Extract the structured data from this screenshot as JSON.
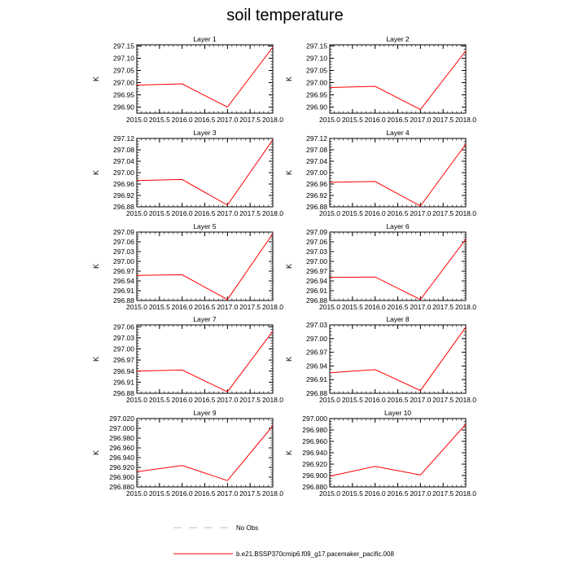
{
  "title": "soil temperature",
  "legend": {
    "items": [
      {
        "label": "No Obs",
        "style": "dashed",
        "color": "#d4b3d4"
      },
      {
        "label": "b.e21.BSSP370cmip6.f09_g17.pacemaker_pacific.008",
        "style": "solid",
        "color": "#ff0000"
      }
    ]
  },
  "colors": {
    "series": "#ff0000",
    "axis": "#000000"
  },
  "chart_data": [
    {
      "type": "line",
      "title": "Layer 1",
      "ylabel": "K",
      "x": [
        2015.0,
        2016.0,
        2017.0,
        2018.0
      ],
      "values": [
        296.99,
        296.995,
        296.9,
        297.145
      ],
      "ylim": [
        296.875,
        297.155
      ],
      "yticks": [
        "297.15",
        "297.10",
        "297.05",
        "297.00",
        "296.95",
        "296.90"
      ],
      "ytick_values": [
        297.15,
        297.1,
        297.05,
        297.0,
        296.95,
        296.9
      ],
      "xticks": [
        "2015.0",
        "2015.5",
        "2016.0",
        "2016.5",
        "2017.0",
        "2017.5",
        "2018.0"
      ],
      "xlim": [
        2015.0,
        2018.0
      ]
    },
    {
      "type": "line",
      "title": "Layer 2",
      "ylabel": "K",
      "x": [
        2015.0,
        2016.0,
        2017.0,
        2018.0
      ],
      "values": [
        296.98,
        296.985,
        296.89,
        297.13
      ],
      "ylim": [
        296.875,
        297.155
      ],
      "yticks": [
        "297.15",
        "297.10",
        "297.05",
        "297.00",
        "296.95",
        "296.90"
      ],
      "ytick_values": [
        297.15,
        297.1,
        297.05,
        297.0,
        296.95,
        296.9
      ],
      "xticks": [
        "2015.0",
        "2015.5",
        "2016.0",
        "2016.5",
        "2017.0",
        "2017.5",
        "2018.0"
      ],
      "xlim": [
        2015.0,
        2018.0
      ]
    },
    {
      "type": "line",
      "title": "Layer 3",
      "ylabel": "K",
      "x": [
        2015.0,
        2016.0,
        2017.0,
        2018.0
      ],
      "values": [
        296.972,
        296.976,
        296.886,
        297.115
      ],
      "ylim": [
        296.88,
        297.12
      ],
      "yticks": [
        "297.12",
        "297.08",
        "297.04",
        "297.00",
        "296.96",
        "296.92",
        "296.88"
      ],
      "ytick_values": [
        297.12,
        297.08,
        297.04,
        297.0,
        296.96,
        296.92,
        296.88
      ],
      "xticks": [
        "2015.0",
        "2015.5",
        "2016.0",
        "2016.5",
        "2017.0",
        "2017.5",
        "2018.0"
      ],
      "xlim": [
        2015.0,
        2018.0
      ]
    },
    {
      "type": "line",
      "title": "Layer 4",
      "ylabel": "K",
      "x": [
        2015.0,
        2016.0,
        2017.0,
        2018.0
      ],
      "values": [
        296.966,
        296.969,
        296.883,
        297.1
      ],
      "ylim": [
        296.88,
        297.12
      ],
      "yticks": [
        "297.12",
        "297.08",
        "297.04",
        "297.00",
        "296.96",
        "296.92",
        "296.88"
      ],
      "ytick_values": [
        297.12,
        297.08,
        297.04,
        297.0,
        296.96,
        296.92,
        296.88
      ],
      "xticks": [
        "2015.0",
        "2015.5",
        "2016.0",
        "2016.5",
        "2017.0",
        "2017.5",
        "2018.0"
      ],
      "xlim": [
        2015.0,
        2018.0
      ]
    },
    {
      "type": "line",
      "title": "Layer 5",
      "ylabel": "K",
      "x": [
        2015.0,
        2016.0,
        2017.0,
        2018.0
      ],
      "values": [
        296.957,
        296.959,
        296.883,
        297.085
      ],
      "ylim": [
        296.88,
        297.09
      ],
      "yticks": [
        "297.09",
        "297.06",
        "297.03",
        "297.00",
        "296.97",
        "296.94",
        "296.91",
        "296.88"
      ],
      "ytick_values": [
        297.09,
        297.06,
        297.03,
        297.0,
        296.97,
        296.94,
        296.91,
        296.88
      ],
      "xticks": [
        "2015.0",
        "2015.5",
        "2016.0",
        "2016.5",
        "2017.0",
        "2017.5",
        "2018.0"
      ],
      "xlim": [
        2015.0,
        2018.0
      ]
    },
    {
      "type": "line",
      "title": "Layer 6",
      "ylabel": "K",
      "x": [
        2015.0,
        2016.0,
        2017.0,
        2018.0
      ],
      "values": [
        296.951,
        296.952,
        296.883,
        297.068
      ],
      "ylim": [
        296.88,
        297.09
      ],
      "yticks": [
        "297.09",
        "297.06",
        "297.03",
        "297.00",
        "296.97",
        "296.94",
        "296.91",
        "296.88"
      ],
      "ytick_values": [
        297.09,
        297.06,
        297.03,
        297.0,
        296.97,
        296.94,
        296.91,
        296.88
      ],
      "xticks": [
        "2015.0",
        "2015.5",
        "2016.0",
        "2016.5",
        "2017.0",
        "2017.5",
        "2018.0"
      ],
      "xlim": [
        2015.0,
        2018.0
      ]
    },
    {
      "type": "line",
      "title": "Layer 7",
      "ylabel": "K",
      "x": [
        2015.0,
        2016.0,
        2017.0,
        2018.0
      ],
      "values": [
        296.94,
        296.943,
        296.884,
        297.048
      ],
      "ylim": [
        296.88,
        297.065
      ],
      "yticks": [
        "297.06",
        "297.03",
        "297.00",
        "296.97",
        "296.94",
        "296.91",
        "296.88"
      ],
      "ytick_values": [
        297.06,
        297.03,
        297.0,
        296.97,
        296.94,
        296.91,
        296.88
      ],
      "xticks": [
        "2015.0",
        "2015.5",
        "2016.0",
        "2016.5",
        "2017.0",
        "2017.5",
        "2018.0"
      ],
      "xlim": [
        2015.0,
        2018.0
      ]
    },
    {
      "type": "line",
      "title": "Layer 8",
      "ylabel": "K",
      "x": [
        2015.0,
        2016.0,
        2017.0,
        2018.0
      ],
      "values": [
        296.925,
        296.932,
        296.886,
        297.025
      ],
      "ylim": [
        296.88,
        297.03
      ],
      "yticks": [
        "297.03",
        "297.00",
        "296.97",
        "296.94",
        "296.91",
        "296.88"
      ],
      "ytick_values": [
        297.03,
        297.0,
        296.97,
        296.94,
        296.91,
        296.88
      ],
      "xticks": [
        "2015.0",
        "2015.5",
        "2016.0",
        "2016.5",
        "2017.0",
        "2017.5",
        "2018.0"
      ],
      "xlim": [
        2015.0,
        2018.0
      ]
    },
    {
      "type": "line",
      "title": "Layer 9",
      "ylabel": "K",
      "x": [
        2015.0,
        2016.0,
        2017.0,
        2018.0
      ],
      "values": [
        296.911,
        296.924,
        296.893,
        297.005
      ],
      "ylim": [
        296.88,
        297.02
      ],
      "yticks": [
        "297.020",
        "297.000",
        "296.980",
        "296.960",
        "296.940",
        "296.920",
        "296.900",
        "296.880"
      ],
      "ytick_values": [
        297.02,
        297.0,
        296.98,
        296.96,
        296.94,
        296.92,
        296.9,
        296.88
      ],
      "xticks": [
        "2015.0",
        "2015.5",
        "2016.0",
        "2016.5",
        "2017.0",
        "2017.5",
        "2018.0"
      ],
      "xlim": [
        2015.0,
        2018.0
      ]
    },
    {
      "type": "line",
      "title": "Layer 10",
      "ylabel": "K",
      "x": [
        2015.0,
        2016.0,
        2017.0,
        2018.0
      ],
      "values": [
        296.899,
        296.916,
        296.901,
        296.99
      ],
      "ylim": [
        296.88,
        297.0
      ],
      "yticks": [
        "297.000",
        "296.980",
        "296.960",
        "296.940",
        "296.920",
        "296.900",
        "296.880"
      ],
      "ytick_values": [
        297.0,
        296.98,
        296.96,
        296.94,
        296.92,
        296.9,
        296.88
      ],
      "xticks": [
        "2015.0",
        "2015.5",
        "2016.0",
        "2016.5",
        "2017.0",
        "2017.5",
        "2018.0"
      ],
      "xlim": [
        2015.0,
        2018.0
      ]
    }
  ]
}
